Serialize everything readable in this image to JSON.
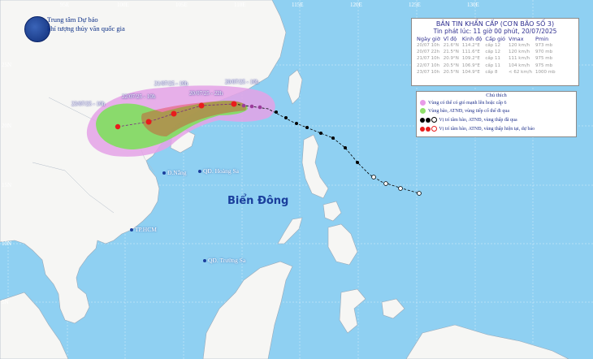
{
  "header": {
    "agency_line1": "Trung tâm Dự báo",
    "agency_line2": "khí tượng thủy văn quốc gia"
  },
  "info_box": {
    "title": "BẢN TIN KHẨN CẤP (CƠN BÃO SỐ 3)",
    "issued": "Tin phát lúc: 11 giờ 00 phút, 20/07/2025",
    "columns": [
      "Ngày giờ",
      "Vĩ độ",
      "Kinh độ",
      "Cấp gió",
      "Vmax",
      "Pmin"
    ],
    "rows": [
      [
        "20/07 10h",
        "21.6°N",
        "114.2°E",
        "cấp 12",
        "120 km/h",
        "973 mb"
      ],
      [
        "20/07 22h",
        "21.5°N",
        "111.6°E",
        "cấp 12",
        "120 km/h",
        "970 mb"
      ],
      [
        "21/07 10h",
        "20.9°N",
        "109.2°E",
        "cấp 11",
        "111 km/h",
        "975 mb"
      ],
      [
        "22/07 10h",
        "20.5°N",
        "106.9°E",
        "cấp 11",
        "104 km/h",
        "975 mb"
      ],
      [
        "23/07 10h",
        "20.5°N",
        "104.9°E",
        "cấp 8",
        "< 62 km/h",
        "1000 mb"
      ]
    ]
  },
  "legend": {
    "title": "Chú thích",
    "items": [
      {
        "label": "Vùng có thể có gió mạnh lên hoặc cấp 6",
        "color": "#e89be8"
      },
      {
        "label": "Vùng bão, ATNĐ, vùng tiếp cố thể đi qua",
        "color": "#8fe06a"
      },
      {
        "label": "Vị trí tâm bão, ATNĐ, vùng thấp đã qua",
        "color": "#000000"
      },
      {
        "label": "Vị trí tâm bão, ATNĐ, vùng thấp hiện tại, dự báo",
        "color": "#e81c1c"
      }
    ]
  },
  "map": {
    "sea_label": "Biển Đông",
    "places": [
      {
        "label": "Đ.Nẵng"
      },
      {
        "label": "QĐ. Hoàng Sa"
      },
      {
        "label": "TP.HCM"
      },
      {
        "label": "QĐ. Trường Sa"
      }
    ],
    "forecast_labels": [
      {
        "label": "23/07/25 - 10h"
      },
      {
        "label": "22/07/25 - 10h"
      },
      {
        "label": "21/07/25 - 10h"
      },
      {
        "label": "20/07/25 - 22h"
      },
      {
        "label": "20/07/25 - 10h"
      }
    ],
    "lon_ticks": [
      "95E",
      "100E",
      "105E",
      "110E",
      "115E",
      "120E",
      "125E",
      "130E"
    ],
    "lat_ticks": [
      "25N",
      "20N",
      "15N",
      "10N",
      "5N"
    ],
    "colors": {
      "sea": "#8fd0f2",
      "land": "#f6f6f4",
      "wind_zone": "#e4a2e6",
      "storm_zone": "#80df5e",
      "danger": "#e81c1c",
      "past_track": "#000000"
    }
  }
}
